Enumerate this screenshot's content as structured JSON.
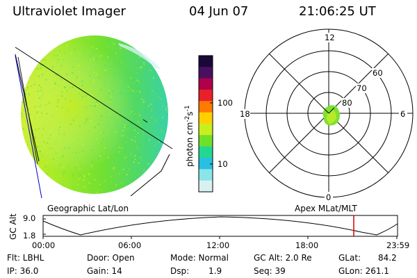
{
  "header": {
    "instrument": "Ultraviolet Imager",
    "date": "04 Jun 07",
    "time": "21:06:25 UT"
  },
  "colorbar": {
    "unit_label": "photon cm",
    "unit_exp1": "-2",
    "unit_s": "s",
    "unit_exp2": "-1",
    "ticks": [
      "100",
      "10"
    ],
    "colors": [
      "#1a0838",
      "#4a1060",
      "#b0004a",
      "#e8202a",
      "#ff7a00",
      "#ffd000",
      "#c8ee20",
      "#6ee02a",
      "#22d890",
      "#28c0e0",
      "#8ae4e8",
      "#d8f0f0"
    ]
  },
  "polar_plot": {
    "mlt_labels": [
      "12",
      "18",
      "6",
      "0"
    ],
    "lat_labels": [
      "60",
      "70",
      "80"
    ]
  },
  "timeline": {
    "left_title": "Geographic Lat/Lon",
    "right_title": "Apex MLat/MLT",
    "axis_label": "GC Alt",
    "y_labels": [
      "9.0",
      "1.8"
    ],
    "x_labels": [
      "00:00",
      "06:00",
      "12:00",
      "18:00",
      "23:59"
    ],
    "marker_color": "#d00000"
  },
  "info": {
    "filter_label": "Flt: LBHL",
    "ip_label": "IP: 36.0",
    "door_label": "Door: Open",
    "gain_label": "Gain: 14",
    "mode_label": "Mode: Normal",
    "dsp_label": "Dsp:",
    "dsp_value": "1.9",
    "gcalt_label": "GC Alt: 2.0 Re",
    "seq_label": "Seq: 39",
    "glat_label": "GLat:",
    "glat_value": "84.2",
    "glon_label": "GLon: 261.1"
  }
}
